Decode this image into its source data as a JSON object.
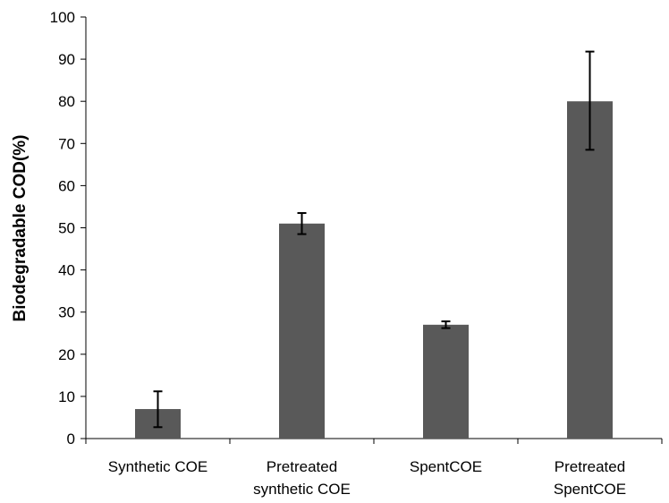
{
  "chart_data": {
    "type": "bar",
    "title": "",
    "xlabel": "",
    "ylabel": "Biodegradable COD(%)",
    "ylim": [
      0,
      100
    ],
    "yticks": [
      0,
      10,
      20,
      30,
      40,
      50,
      60,
      70,
      80,
      90,
      100
    ],
    "grid": false,
    "legend": "none",
    "categories": [
      [
        "Synthetic COE"
      ],
      [
        "Pretreated",
        "synthetic COE"
      ],
      [
        "SpentCOE"
      ],
      [
        "Pretreated",
        "SpentCOE"
      ]
    ],
    "values": [
      7,
      51,
      27,
      80
    ],
    "error_bars": [
      {
        "low": 2.7,
        "high": 11.2
      },
      {
        "low": 48.5,
        "high": 53.5
      },
      {
        "low": 26.2,
        "high": 27.8
      },
      {
        "low": 68.5,
        "high": 91.8
      }
    ],
    "bar_color": "#595959",
    "axis_color": "#000000"
  }
}
